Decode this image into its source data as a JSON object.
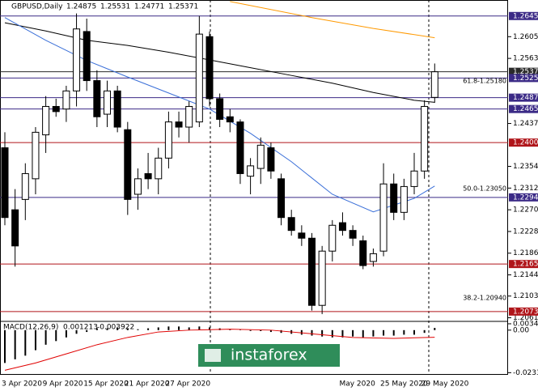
{
  "chart_data": {
    "type": "candlestick",
    "symbol": "GBPUSD,Daily",
    "header_values": [
      1.24875,
      1.25531,
      1.24771,
      1.25371
    ],
    "categories": [
      "3 Apr 2020",
      null,
      null,
      null,
      "9 Apr 2020",
      null,
      null,
      null,
      "15 Apr 2020",
      null,
      null,
      null,
      "21 Apr 2020",
      null,
      null,
      null,
      "27 Apr 2020",
      null,
      null,
      null,
      null,
      null,
      null,
      null,
      null,
      null,
      null,
      null,
      null,
      null,
      null,
      null,
      null,
      "May 2020",
      null,
      null,
      null,
      "25 May 2020",
      null,
      null,
      null,
      "29 May 2020",
      null
    ],
    "open": [
      1.239,
      1.227,
      1.229,
      1.233,
      1.2415,
      1.247,
      1.2465,
      1.25,
      1.2615,
      1.252,
      1.2455,
      1.25,
      1.2425,
      1.23,
      1.234,
      1.233,
      1.237,
      1.244,
      1.243,
      1.244,
      1.2605,
      1.2485,
      1.245,
      1.244,
      1.2335,
      1.235,
      1.239,
      1.233,
      1.2255,
      1.2225,
      1.2215,
      1.2085,
      1.219,
      1.2245,
      1.223,
      1.221,
      1.217,
      1.219,
      1.232,
      1.2265,
      1.2315,
      1.2345,
      1.24875
    ],
    "high": [
      1.242,
      1.231,
      1.236,
      1.243,
      1.249,
      1.2485,
      1.251,
      1.265,
      1.264,
      1.254,
      1.252,
      1.251,
      1.244,
      1.235,
      1.238,
      1.239,
      1.246,
      1.246,
      1.248,
      1.2645,
      1.2615,
      1.2495,
      1.2465,
      1.2445,
      1.237,
      1.241,
      1.24,
      1.234,
      1.227,
      1.224,
      1.2225,
      1.22,
      1.225,
      1.2265,
      1.224,
      1.222,
      1.2195,
      1.236,
      1.234,
      1.233,
      1.238,
      1.2482,
      1.25531
    ],
    "low": [
      1.224,
      1.216,
      1.225,
      1.23,
      1.238,
      1.245,
      1.244,
      1.247,
      1.25,
      1.243,
      1.243,
      1.242,
      1.226,
      1.227,
      1.231,
      1.23,
      1.235,
      1.241,
      1.24,
      1.243,
      1.247,
      1.243,
      1.242,
      1.232,
      1.23,
      1.232,
      1.233,
      1.224,
      1.222,
      1.22,
      1.2075,
      1.2068,
      1.217,
      1.222,
      1.22,
      1.2155,
      1.216,
      1.218,
      1.225,
      1.225,
      1.23,
      1.233,
      1.24771
    ],
    "close": [
      1.2255,
      1.22,
      1.234,
      1.242,
      1.247,
      1.246,
      1.25,
      1.262,
      1.252,
      1.245,
      1.25,
      1.243,
      1.229,
      1.233,
      1.233,
      1.237,
      1.244,
      1.243,
      1.247,
      1.261,
      1.2485,
      1.2445,
      1.244,
      1.234,
      1.2355,
      1.2395,
      1.2345,
      1.2255,
      1.223,
      1.2215,
      1.2085,
      1.219,
      1.224,
      1.223,
      1.2215,
      1.2162,
      1.2185,
      1.232,
      1.2265,
      1.2315,
      1.2345,
      1.247,
      1.25371
    ],
    "lines": [
      {
        "color": "#ff9900",
        "x": [
          22,
          30,
          36,
          42
        ],
        "values": [
          1.2673,
          1.2642,
          1.2621,
          1.2603
        ]
      },
      {
        "color": "#000000",
        "x": [
          0,
          4,
          8,
          12,
          16,
          20,
          24,
          28,
          32,
          36,
          40,
          42
        ],
        "values": [
          1.2632,
          1.2616,
          1.2598,
          1.2588,
          1.2575,
          1.256,
          1.2545,
          1.253,
          1.2515,
          1.2497,
          1.2482,
          1.2478
        ]
      },
      {
        "color": "#3a6fd8",
        "x": [
          0,
          4,
          8,
          12,
          16,
          20,
          24,
          28,
          32,
          36,
          40,
          42
        ],
        "values": [
          1.2642,
          1.2598,
          1.2559,
          1.2527,
          1.2496,
          1.2465,
          1.2418,
          1.2363,
          1.23,
          1.2266,
          1.2292,
          1.2316
        ]
      }
    ],
    "ylim": [
      1.2054,
      1.2676
    ],
    "yticks": [
      {
        "value": 1.2605,
        "label": "1.26050"
      },
      {
        "value": 1.2563,
        "label": "1.25630"
      },
      {
        "value": 1.2437,
        "label": "1.24370"
      },
      {
        "value": 1.2354,
        "label": "1.23540"
      },
      {
        "value": 1.2312,
        "label": "1.23120"
      },
      {
        "value": 1.227,
        "label": "1.22700"
      },
      {
        "value": 1.2228,
        "label": "1.22280"
      },
      {
        "value": 1.2186,
        "label": "1.21860"
      },
      {
        "value": 1.2144,
        "label": "1.21440"
      },
      {
        "value": 1.2103,
        "label": "1.21030"
      },
      {
        "value": 1.2061,
        "label": "1.20610"
      }
    ],
    "levels": [
      {
        "value": 1.2645,
        "label": "1.26450",
        "color": "#3b2a86"
      },
      {
        "value": 1.25371,
        "label": "1.25371",
        "color": "#2a2a2a"
      },
      {
        "value": 1.2525,
        "label": "1.25250",
        "color": "#3b2a86"
      },
      {
        "value": 1.2487,
        "label": "1.24870",
        "color": "#3b2a86"
      },
      {
        "value": 1.2465,
        "label": "1.24650",
        "color": "#3b2a86"
      },
      {
        "value": 1.24,
        "label": "1.24000",
        "color": "#b0151a"
      },
      {
        "value": 1.2294,
        "label": "1.22940",
        "color": "#3b2a86"
      },
      {
        "value": 1.2165,
        "label": "1.21650",
        "color": "#b0151a"
      },
      {
        "value": 1.2073,
        "label": "1.20730",
        "color": "#b0151a"
      }
    ],
    "annotations": [
      "61.8-1.25180",
      "50.0-1.23050",
      "38.2-1.20940"
    ],
    "macd": {
      "label": "MACD(12,26,9)",
      "header_values": [
        0.001213,
        -0.003922
      ],
      "values": [
        -0.018,
        -0.016,
        -0.014,
        -0.011,
        -0.008,
        -0.006,
        -0.004,
        -0.002,
        -0.001,
        0.001,
        0.001,
        0.0015,
        0.001,
        0.0005,
        0.001,
        0.0015,
        0.002,
        0.002,
        0.0015,
        0.002,
        0.0015,
        0.001,
        0.0005,
        0.0005,
        0,
        -0.0005,
        -0.001,
        -0.0015,
        -0.002,
        -0.0025,
        -0.003,
        -0.0035,
        -0.004,
        -0.004,
        -0.0035,
        -0.004,
        -0.0035,
        -0.003,
        -0.003,
        -0.0025,
        -0.0025,
        -0.0015,
        0.001213
      ],
      "signal": {
        "color": "#e00000",
        "x": [
          0,
          3,
          6,
          9,
          12,
          15,
          18,
          22,
          26,
          30,
          34,
          38,
          42
        ],
        "values": [
          -0.022,
          -0.018,
          -0.013,
          -0.008,
          -0.004,
          -0.001,
          0,
          0.0005,
          0,
          -0.002,
          -0.004,
          -0.0045,
          -0.003922
        ]
      },
      "ylim": [
        -0.0245,
        0.0048
      ],
      "yticks": [
        0.003481,
        {
          "value": 0,
          "label": "0.00"
        },
        -0.023324
      ]
    },
    "watermark": "instaforex"
  }
}
